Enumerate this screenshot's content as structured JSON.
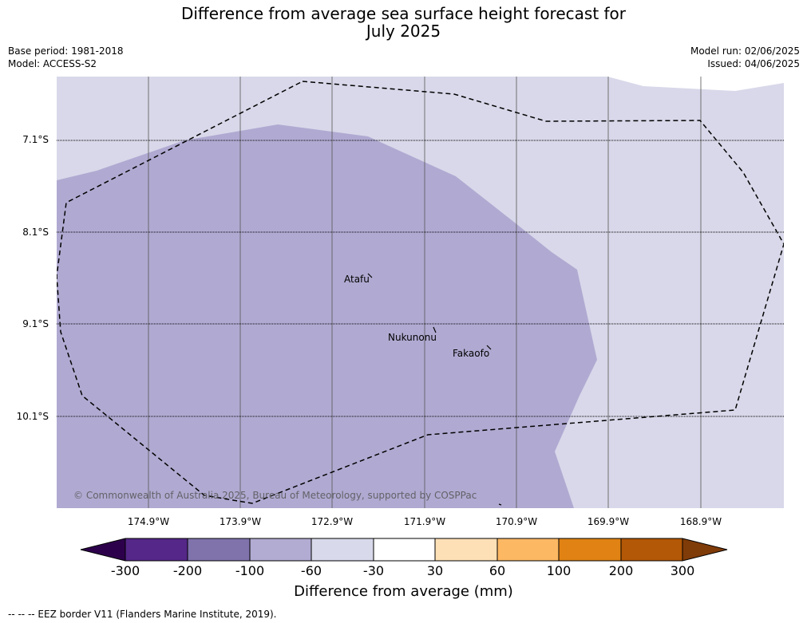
{
  "title": {
    "line1": "Difference from average sea surface height forecast for",
    "line2": "July 2025"
  },
  "meta_left": {
    "base_period": "Base period: 1981-2018",
    "model": "Model: ACCESS-S2"
  },
  "meta_right": {
    "model_run": "Model run: 02/06/2025",
    "issued": "Issued: 04/06/2025"
  },
  "map": {
    "latitude_labels": [
      "7.1°S",
      "8.1°S",
      "9.1°S",
      "10.1°S"
    ],
    "longitude_labels": [
      "174.9°W",
      "173.9°W",
      "172.9°W",
      "171.9°W",
      "170.9°W",
      "169.9°W",
      "168.9°W"
    ],
    "places": [
      "Atafu",
      "Nukunonu",
      "Fakaofo"
    ],
    "copyright": "© Commonwealth of Australia 2025, Bureau of Meteorology, supported by COSPPac",
    "colors": {
      "dark_band": "#b0aad2",
      "light_band": "#d8d8ea",
      "eez_border": "#000000"
    }
  },
  "colorbar": {
    "ticks": [
      "-300",
      "-200",
      "-100",
      "-60",
      "-30",
      "30",
      "60",
      "100",
      "200",
      "300"
    ],
    "colors": [
      "#2d004b",
      "#542788",
      "#8073ac",
      "#b2abd2",
      "#d8daeb",
      "#ffffff",
      "#fee0b6",
      "#fdb863",
      "#e08214",
      "#b35806",
      "#7f3b08"
    ],
    "label": "Difference from average (mm)"
  },
  "footnote": "--  --  -- EEZ border V11 (Flanders Marine Institute, 2019)."
}
